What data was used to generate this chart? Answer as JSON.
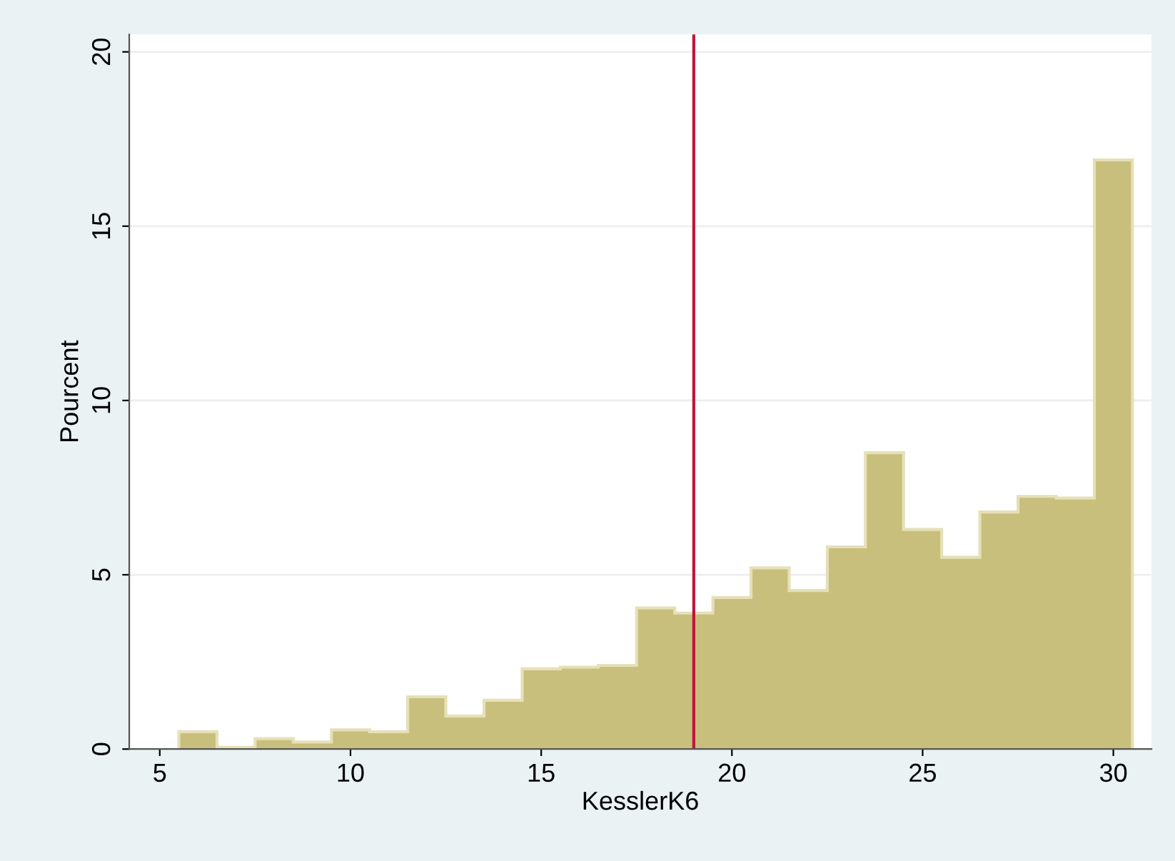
{
  "chart_data": {
    "type": "histogram",
    "xlabel": "KesslerK6",
    "ylabel": "Pourcent",
    "bins": [
      5.5,
      6.5,
      7.5,
      8.5,
      9.5,
      10.5,
      11.5,
      12.5,
      13.5,
      14.5,
      15.5,
      16.5,
      17.5,
      18.5,
      19.5,
      20.5,
      21.5,
      22.5,
      23.5,
      24.5,
      25.5,
      26.5,
      27.5,
      28.5,
      29.5,
      30.5
    ],
    "values": [
      0.5,
      0.05,
      0.3,
      0.2,
      0.55,
      0.5,
      1.5,
      0.95,
      1.4,
      2.3,
      2.35,
      2.4,
      4.05,
      3.9,
      4.35,
      5.2,
      4.55,
      5.8,
      8.5,
      6.3,
      5.5,
      6.8,
      7.25,
      7.2,
      16.9
    ],
    "color": "#c8bf7c",
    "xlim": [
      4.2,
      31
    ],
    "ylim": [
      0,
      20.5
    ],
    "xticks": [
      5,
      10,
      15,
      20,
      25,
      30
    ],
    "yticks": [
      0,
      5,
      10,
      15,
      20
    ],
    "grid": "y",
    "ref_lines": [
      {
        "axis": "x",
        "value": 19,
        "color": "#c0143c"
      }
    ]
  }
}
